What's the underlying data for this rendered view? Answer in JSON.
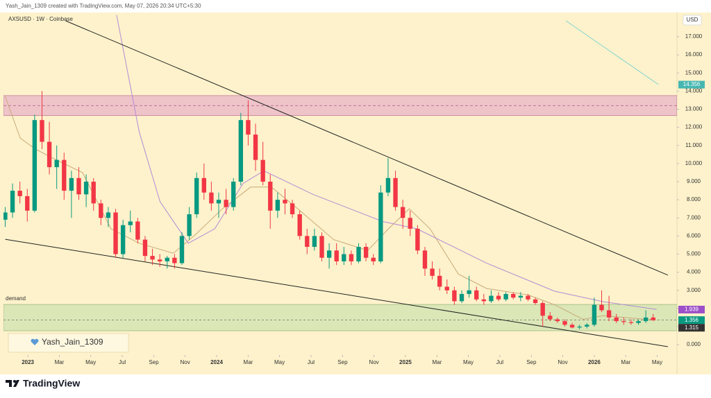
{
  "header": {
    "text": "Yash_Jain_1309 created with TradingView.com, May 07, 2026 20:34 UTC+5:30"
  },
  "chart_data": {
    "type": "candlestick",
    "title": "AXSUSD · 1W · Coinbase",
    "currency": "USD",
    "xlim": [
      2022.882,
      2026.438
    ],
    "ylim": [
      -0.57,
      18.34
    ],
    "grid": false,
    "up_color": "#089981",
    "down_color": "#f23645",
    "xticks": [
      2023,
      {
        "value": 2023.167,
        "label": "Mar"
      },
      {
        "value": 2023.333,
        "label": "May"
      },
      {
        "value": 2023.5,
        "label": "Jul"
      },
      {
        "value": 2023.667,
        "label": "Sep"
      },
      {
        "value": 2023.833,
        "label": "Nov"
      },
      2024,
      {
        "value": 2024.167,
        "label": "Mar"
      },
      {
        "value": 2024.333,
        "label": "May"
      },
      {
        "value": 2024.5,
        "label": "Jul"
      },
      {
        "value": 2024.667,
        "label": "Sep"
      },
      {
        "value": 2024.833,
        "label": "Nov"
      },
      2025,
      {
        "value": 2025.167,
        "label": "Mar"
      },
      {
        "value": 2025.333,
        "label": "May"
      },
      {
        "value": 2025.5,
        "label": "Jul"
      },
      {
        "value": 2025.667,
        "label": "Sep"
      },
      {
        "value": 2025.833,
        "label": "Nov"
      },
      2026,
      {
        "value": 2026.167,
        "label": "Mar"
      },
      {
        "value": 2026.333,
        "label": "May"
      }
    ],
    "yticks": [
      {
        "value": 0,
        "label": "0.000"
      },
      {
        "value": 1,
        "label": "1.000"
      },
      {
        "value": 2,
        "label": "2.000"
      },
      {
        "value": 3,
        "label": "3.000"
      },
      {
        "value": 4,
        "label": "4.000"
      },
      {
        "value": 5,
        "label": "5.000"
      },
      {
        "value": 6,
        "label": "6.000"
      },
      {
        "value": 7,
        "label": "7.000"
      },
      {
        "value": 8,
        "label": "8.000"
      },
      {
        "value": 9,
        "label": "9.000"
      },
      {
        "value": 10,
        "label": "10.000"
      },
      {
        "value": 11,
        "label": "11.000"
      },
      {
        "value": 12,
        "label": "12.000"
      },
      {
        "value": 13,
        "label": "13.000"
      },
      {
        "value": 14,
        "label": "14.000"
      },
      {
        "value": 15,
        "label": "15.000"
      },
      {
        "value": 16,
        "label": "16.000"
      },
      {
        "value": 17,
        "label": "17.000"
      }
    ],
    "candles": {
      "x": [
        2022.88,
        2022.919,
        2022.958,
        2022.997,
        2023.036,
        2023.075,
        2023.114,
        2023.153,
        2023.192,
        2023.231,
        2023.27,
        2023.309,
        2023.348,
        2023.387,
        2023.426,
        2023.465,
        2023.504,
        2023.543,
        2023.582,
        2023.621,
        2023.66,
        2023.699,
        2023.738,
        2023.777,
        2023.816,
        2023.855,
        2023.894,
        2023.933,
        2023.972,
        2024.011,
        2024.05,
        2024.089,
        2024.128,
        2024.167,
        2024.206,
        2024.245,
        2024.284,
        2024.323,
        2024.362,
        2024.401,
        2024.44,
        2024.479,
        2024.518,
        2024.557,
        2024.596,
        2024.635,
        2024.674,
        2024.713,
        2024.752,
        2024.791,
        2024.83,
        2024.869,
        2024.908,
        2024.947,
        2024.986,
        2025.025,
        2025.064,
        2025.103,
        2025.142,
        2025.181,
        2025.22,
        2025.259,
        2025.298,
        2025.337,
        2025.376,
        2025.415,
        2025.454,
        2025.493,
        2025.532,
        2025.571,
        2025.61,
        2025.649,
        2025.688,
        2025.727,
        2025.766,
        2025.805,
        2025.844,
        2025.883,
        2025.922,
        2025.961,
        2026.0,
        2026.039,
        2026.078,
        2026.117,
        2026.156,
        2026.195,
        2026.234,
        2026.273,
        2026.312
      ],
      "open": [
        6.9,
        7.3,
        8.5,
        8.2,
        7.4,
        12.4,
        11.2,
        9.8,
        10.2,
        8.5,
        9.2,
        8.3,
        9.0,
        7.8,
        7.0,
        7.3,
        5.0,
        6.6,
        6.8,
        5.8,
        4.9,
        4.7,
        4.6,
        4.8,
        4.5,
        6.0,
        7.2,
        9.2,
        8.4,
        7.8,
        8.0,
        7.6,
        9.0,
        12.4,
        11.6,
        10.2,
        9.0,
        7.4,
        8.0,
        7.8,
        7.2,
        6.0,
        5.4,
        6.0,
        4.8,
        5.2,
        4.6,
        5.0,
        4.6,
        5.4,
        4.8,
        4.6,
        8.4,
        9.2,
        7.6,
        7.0,
        6.4,
        5.2,
        4.2,
        3.8,
        3.2,
        3.0,
        2.4,
        2.8,
        3.0,
        2.5,
        2.4,
        2.7,
        2.5,
        2.8,
        2.6,
        2.7,
        2.5,
        2.3,
        1.6,
        1.4,
        1.3,
        1.1,
        0.95,
        1.0,
        1.1,
        2.2,
        1.9,
        1.5,
        1.3,
        1.25,
        1.2,
        1.3,
        1.5
      ],
      "high": [
        7.6,
        8.9,
        9.0,
        8.6,
        12.7,
        14.0,
        12.3,
        11.0,
        10.6,
        9.6,
        9.8,
        9.4,
        9.2,
        8.0,
        7.6,
        7.5,
        6.9,
        7.4,
        7.0,
        6.0,
        5.3,
        5.0,
        4.9,
        5.0,
        6.2,
        7.6,
        9.5,
        10.0,
        9.0,
        8.4,
        8.6,
        9.2,
        12.8,
        13.5,
        12.2,
        11.2,
        9.4,
        8.4,
        8.6,
        8.0,
        7.4,
        6.4,
        6.4,
        6.2,
        5.6,
        5.6,
        5.4,
        5.2,
        5.6,
        5.6,
        5.0,
        8.8,
        10.3,
        9.6,
        8.0,
        7.4,
        6.6,
        5.4,
        4.6,
        4.2,
        3.6,
        3.2,
        3.0,
        3.8,
        3.2,
        2.8,
        3.0,
        2.9,
        2.9,
        2.9,
        2.9,
        2.8,
        2.6,
        2.4,
        1.8,
        1.5,
        1.4,
        1.2,
        1.1,
        1.2,
        2.6,
        3.0,
        2.7,
        1.7,
        1.5,
        1.4,
        1.4,
        1.9,
        1.7
      ],
      "low": [
        6.5,
        7.0,
        7.8,
        6.8,
        7.3,
        10.8,
        9.4,
        8.6,
        8.0,
        7.0,
        8.0,
        7.6,
        7.4,
        6.6,
        6.5,
        4.8,
        4.8,
        6.2,
        5.6,
        4.6,
        4.4,
        4.3,
        4.2,
        4.2,
        4.4,
        5.8,
        7.0,
        8.0,
        7.4,
        7.0,
        7.2,
        7.4,
        8.8,
        11.0,
        9.6,
        8.8,
        6.4,
        7.0,
        7.2,
        7.0,
        5.8,
        5.0,
        5.2,
        4.6,
        4.2,
        4.4,
        4.4,
        4.4,
        4.5,
        4.6,
        4.4,
        4.5,
        8.2,
        7.4,
        6.4,
        6.0,
        5.0,
        3.8,
        3.6,
        3.0,
        2.8,
        2.2,
        2.3,
        2.6,
        2.4,
        2.2,
        2.3,
        2.4,
        2.4,
        2.5,
        2.4,
        2.4,
        2.2,
        1.0,
        1.3,
        1.2,
        1.0,
        0.9,
        0.85,
        0.9,
        1.0,
        1.8,
        1.3,
        1.2,
        1.1,
        1.1,
        1.1,
        1.2,
        1.3
      ],
      "close": [
        7.3,
        8.5,
        8.2,
        7.4,
        12.4,
        11.2,
        9.8,
        10.2,
        8.5,
        9.2,
        8.3,
        9.0,
        7.8,
        7.0,
        7.3,
        5.0,
        6.6,
        6.8,
        5.8,
        4.9,
        4.7,
        4.6,
        4.8,
        4.5,
        6.0,
        7.2,
        9.2,
        8.4,
        7.8,
        8.0,
        7.6,
        9.0,
        12.4,
        11.6,
        10.2,
        9.0,
        7.4,
        8.0,
        7.8,
        7.2,
        6.0,
        5.4,
        6.0,
        4.8,
        5.2,
        4.6,
        5.0,
        4.6,
        5.4,
        4.8,
        4.6,
        8.4,
        9.2,
        7.6,
        7.0,
        6.4,
        5.2,
        4.2,
        3.8,
        3.2,
        3.0,
        2.4,
        2.8,
        3.0,
        2.5,
        2.4,
        2.7,
        2.5,
        2.8,
        2.6,
        2.7,
        2.5,
        2.3,
        1.6,
        1.4,
        1.3,
        1.1,
        0.95,
        1.0,
        1.1,
        2.2,
        1.9,
        1.5,
        1.3,
        1.25,
        1.2,
        1.3,
        1.5,
        1.356
      ]
    },
    "lines": [
      {
        "color": "#c9a97a",
        "x": [
          2022.88,
          2022.96,
          2023.04,
          2023.15,
          2023.29,
          2023.44,
          2023.59,
          2023.77,
          2023.88,
          2024.03,
          2024.18,
          2024.29,
          2024.43,
          2024.62,
          2024.8,
          2024.91,
          2025.02,
          2025.13,
          2025.28,
          2025.43,
          2025.65,
          2025.79,
          2025.94,
          2026.05,
          2026.33
        ],
        "values": [
          13.7,
          11.4,
          10.8,
          10.2,
          9.5,
          6.4,
          5.6,
          5.05,
          6.0,
          7.5,
          8.7,
          8.7,
          7.5,
          5.8,
          5.2,
          6.4,
          7.5,
          6.4,
          3.9,
          3.1,
          2.75,
          2.2,
          1.4,
          1.6,
          1.35
        ]
      },
      {
        "color": "#b48ad6",
        "x": [
          2023.47,
          2023.59,
          2023.7,
          2023.85,
          2023.99,
          2024.14,
          2024.25,
          2024.51,
          2024.88,
          2025.06,
          2025.43,
          2025.79,
          2026.05,
          2026.33
        ],
        "values": [
          18.2,
          11.75,
          7.9,
          5.6,
          6.4,
          8.9,
          9.6,
          8.3,
          6.8,
          6.4,
          4.5,
          2.95,
          2.37,
          1.95
        ]
      },
      {
        "color": "#222222",
        "x": [
          2023.2,
          2026.39
        ],
        "values": [
          17.88,
          3.84
        ]
      },
      {
        "color": "#222222",
        "x": [
          2022.88,
          2026.39
        ],
        "values": [
          5.82,
          -0.11
        ]
      },
      {
        "color": "#7fd3d0",
        "x": [
          2025.85,
          2026.34
        ],
        "values": [
          17.88,
          14.36
        ]
      }
    ],
    "zones": [
      {
        "from": 12.65,
        "to": 13.75,
        "mid": 13.2,
        "fill": "#e8b4c8",
        "stroke": "#c27a98"
      },
      {
        "from": 0.77,
        "to": 2.22,
        "fill": "#cfe3b0",
        "stroke": "#9dbb7f",
        "label": "demand"
      }
    ],
    "price_line": 1.356,
    "price_labels": [
      {
        "value": 14.356,
        "color": "#46b7b2"
      },
      {
        "value": 1.939,
        "color": "#9c4fc9"
      },
      {
        "value": 1.356,
        "color": "#089981"
      },
      {
        "value": 1.315,
        "color": "#333333"
      }
    ]
  },
  "watermark": {
    "text": "Yash_Jain_1309"
  },
  "footer": {
    "logo": "TradingView"
  }
}
